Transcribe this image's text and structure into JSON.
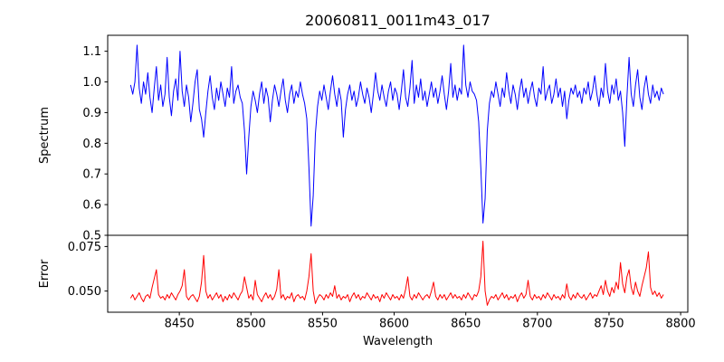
{
  "figure": {
    "title": "20060811_0011m43_017",
    "background": "#ffffff",
    "spine_color": "#000000",
    "text_color": "#000000"
  },
  "chart_data": [
    {
      "type": "line",
      "panel": "spectrum",
      "title": "20060811_0011m43_017",
      "ylabel": "Spectrum",
      "line_color": "#0000ff",
      "grid": false,
      "legend": "none",
      "xlim": [
        8400,
        8805
      ],
      "ylim": [
        0.5,
        1.152
      ],
      "yticks": [
        0.5,
        0.6,
        0.7,
        0.8,
        0.9,
        1.0,
        1.1
      ],
      "ytick_labels": [
        "0.5",
        "0.6",
        "0.7",
        "0.8",
        "0.9",
        "1.0",
        "1.1"
      ],
      "x_start": 8416,
      "x_step": 1.5,
      "values": [
        0.99,
        0.96,
        1.0,
        1.12,
        0.98,
        0.93,
        1.0,
        0.96,
        1.03,
        0.95,
        0.9,
        0.98,
        1.05,
        0.94,
        0.99,
        0.92,
        0.96,
        1.08,
        0.95,
        0.89,
        0.97,
        1.01,
        0.94,
        1.1,
        0.97,
        0.92,
        0.99,
        0.95,
        0.87,
        0.93,
        1.0,
        1.04,
        0.91,
        0.88,
        0.82,
        0.9,
        0.97,
        1.02,
        0.95,
        0.91,
        0.98,
        0.94,
        1.0,
        0.96,
        0.92,
        0.98,
        0.95,
        1.05,
        0.93,
        0.97,
        0.99,
        0.95,
        0.93,
        0.84,
        0.7,
        0.82,
        0.92,
        0.97,
        0.94,
        0.9,
        0.96,
        1.0,
        0.93,
        0.98,
        0.95,
        0.87,
        0.94,
        0.99,
        0.96,
        0.92,
        0.97,
        1.01,
        0.94,
        0.9,
        0.96,
        0.99,
        0.93,
        0.97,
        0.95,
        1.0,
        0.96,
        0.93,
        0.88,
        0.72,
        0.53,
        0.63,
        0.83,
        0.92,
        0.97,
        0.94,
        0.99,
        0.95,
        0.91,
        0.97,
        1.02,
        0.96,
        0.92,
        0.98,
        0.94,
        0.82,
        0.91,
        0.96,
        0.99,
        0.94,
        0.97,
        0.92,
        0.95,
        1.0,
        0.96,
        0.93,
        0.98,
        0.95,
        0.9,
        0.96,
        1.03,
        0.97,
        0.94,
        0.99,
        0.95,
        0.92,
        0.97,
        1.0,
        0.94,
        0.98,
        0.96,
        0.91,
        0.97,
        1.04,
        0.95,
        0.92,
        0.98,
        1.07,
        0.93,
        0.99,
        0.95,
        1.01,
        0.94,
        0.97,
        0.92,
        0.96,
        1.0,
        0.95,
        0.98,
        0.93,
        0.97,
        1.02,
        0.96,
        0.91,
        0.97,
        1.06,
        0.95,
        0.99,
        0.94,
        0.98,
        0.96,
        1.12,
        0.99,
        0.95,
        1.0,
        0.97,
        0.96,
        0.94,
        0.87,
        0.72,
        0.54,
        0.62,
        0.84,
        0.93,
        0.97,
        0.95,
        1.0,
        0.96,
        0.92,
        0.98,
        0.95,
        1.03,
        0.97,
        0.93,
        0.99,
        0.96,
        0.91,
        0.97,
        1.01,
        0.95,
        0.98,
        0.93,
        0.97,
        1.0,
        0.95,
        0.92,
        0.98,
        0.96,
        1.05,
        0.94,
        0.97,
        0.99,
        0.93,
        0.96,
        1.01,
        0.95,
        0.98,
        0.92,
        0.97,
        0.88,
        0.94,
        0.98,
        0.96,
        0.99,
        0.95,
        0.97,
        0.93,
        0.98,
        0.96,
        1.0,
        0.94,
        0.97,
        1.02,
        0.96,
        0.92,
        0.98,
        0.95,
        1.06,
        0.97,
        0.93,
        0.99,
        0.96,
        1.01,
        0.94,
        0.97,
        0.9,
        0.79,
        0.95,
        1.08,
        0.96,
        0.92,
        0.99,
        1.04,
        0.95,
        0.91,
        0.98,
        1.02,
        0.96,
        0.93,
        0.99,
        0.95,
        0.97,
        0.94,
        0.98,
        0.96
      ]
    },
    {
      "type": "line",
      "panel": "error",
      "xlabel": "Wavelength",
      "ylabel": "Error",
      "line_color": "#ff0000",
      "grid": false,
      "legend": "none",
      "xlim": [
        8400,
        8805
      ],
      "ylim": [
        0.0381,
        0.0813
      ],
      "yticks": [
        0.05,
        0.075
      ],
      "ytick_labels": [
        "0.050",
        "0.075"
      ],
      "xticks": [
        8450,
        8500,
        8550,
        8600,
        8650,
        8700,
        8750,
        8800
      ],
      "xtick_labels": [
        "8450",
        "8500",
        "8550",
        "8600",
        "8650",
        "8700",
        "8750",
        "8800"
      ],
      "x_start": 8416,
      "x_step": 1.5,
      "values": [
        0.046,
        0.048,
        0.045,
        0.047,
        0.049,
        0.046,
        0.044,
        0.047,
        0.048,
        0.046,
        0.052,
        0.057,
        0.062,
        0.048,
        0.046,
        0.047,
        0.045,
        0.048,
        0.046,
        0.049,
        0.047,
        0.045,
        0.048,
        0.05,
        0.053,
        0.062,
        0.047,
        0.045,
        0.047,
        0.048,
        0.046,
        0.044,
        0.047,
        0.055,
        0.07,
        0.05,
        0.046,
        0.048,
        0.045,
        0.047,
        0.049,
        0.046,
        0.048,
        0.044,
        0.047,
        0.045,
        0.048,
        0.046,
        0.049,
        0.047,
        0.045,
        0.048,
        0.05,
        0.058,
        0.052,
        0.046,
        0.048,
        0.045,
        0.056,
        0.048,
        0.046,
        0.044,
        0.047,
        0.049,
        0.046,
        0.048,
        0.045,
        0.047,
        0.051,
        0.062,
        0.046,
        0.048,
        0.045,
        0.047,
        0.046,
        0.049,
        0.044,
        0.047,
        0.048,
        0.046,
        0.047,
        0.045,
        0.05,
        0.058,
        0.071,
        0.05,
        0.043,
        0.046,
        0.048,
        0.047,
        0.045,
        0.048,
        0.046,
        0.049,
        0.047,
        0.053,
        0.046,
        0.048,
        0.045,
        0.047,
        0.046,
        0.048,
        0.044,
        0.047,
        0.049,
        0.046,
        0.048,
        0.045,
        0.047,
        0.046,
        0.049,
        0.047,
        0.045,
        0.048,
        0.046,
        0.047,
        0.044,
        0.048,
        0.046,
        0.049,
        0.047,
        0.045,
        0.048,
        0.046,
        0.047,
        0.045,
        0.048,
        0.046,
        0.051,
        0.058,
        0.047,
        0.045,
        0.048,
        0.046,
        0.049,
        0.047,
        0.045,
        0.047,
        0.048,
        0.046,
        0.05,
        0.055,
        0.047,
        0.045,
        0.048,
        0.046,
        0.048,
        0.045,
        0.047,
        0.049,
        0.046,
        0.048,
        0.046,
        0.047,
        0.045,
        0.048,
        0.046,
        0.049,
        0.047,
        0.045,
        0.048,
        0.047,
        0.05,
        0.058,
        0.078,
        0.05,
        0.042,
        0.045,
        0.047,
        0.046,
        0.048,
        0.045,
        0.047,
        0.049,
        0.046,
        0.048,
        0.045,
        0.047,
        0.046,
        0.048,
        0.044,
        0.047,
        0.049,
        0.046,
        0.048,
        0.056,
        0.047,
        0.045,
        0.048,
        0.046,
        0.047,
        0.045,
        0.048,
        0.046,
        0.049,
        0.047,
        0.045,
        0.048,
        0.046,
        0.047,
        0.045,
        0.048,
        0.046,
        0.054,
        0.047,
        0.045,
        0.048,
        0.046,
        0.049,
        0.047,
        0.046,
        0.048,
        0.045,
        0.047,
        0.049,
        0.046,
        0.048,
        0.047,
        0.05,
        0.053,
        0.048,
        0.056,
        0.05,
        0.047,
        0.052,
        0.049,
        0.055,
        0.051,
        0.066,
        0.054,
        0.049,
        0.058,
        0.062,
        0.052,
        0.048,
        0.055,
        0.05,
        0.047,
        0.053,
        0.058,
        0.063,
        0.072,
        0.052,
        0.048,
        0.05,
        0.047,
        0.049,
        0.046,
        0.048
      ]
    }
  ]
}
